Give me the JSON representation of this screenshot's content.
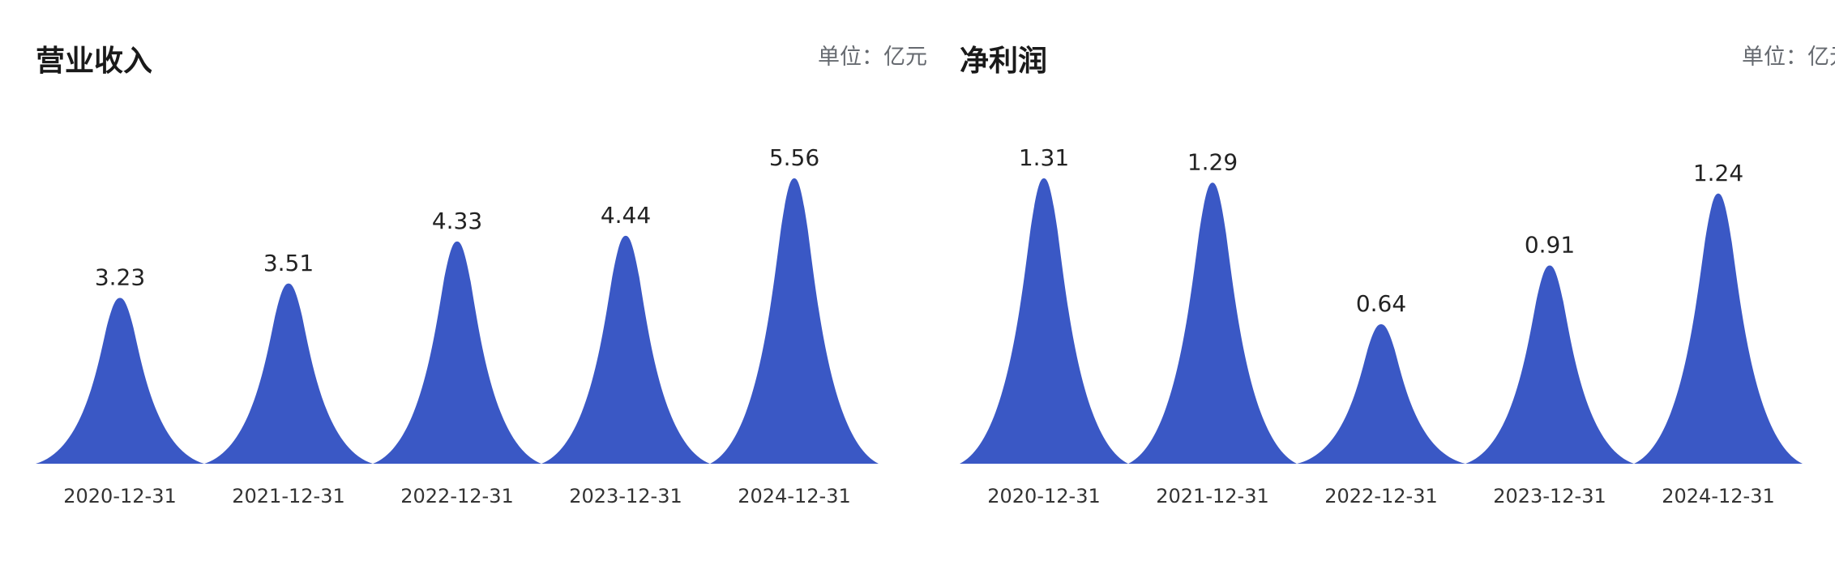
{
  "chart_data": [
    {
      "type": "bar",
      "title": "营业收入",
      "unit": "单位：亿元",
      "categories": [
        "2020-12-31",
        "2021-12-31",
        "2022-12-31",
        "2023-12-31",
        "2024-12-31"
      ],
      "values": [
        3.23,
        3.51,
        4.33,
        4.44,
        5.56
      ],
      "value_labels": [
        "3.23",
        "3.51",
        "4.33",
        "4.44",
        "5.56"
      ],
      "ylim": [
        0,
        5.56
      ],
      "grid": false,
      "bar_shape": "spike",
      "color": "#3a58c5"
    },
    {
      "type": "bar",
      "title": "净利润",
      "unit": "单位：亿元",
      "categories": [
        "2020-12-31",
        "2021-12-31",
        "2022-12-31",
        "2023-12-31",
        "2024-12-31"
      ],
      "values": [
        1.31,
        1.29,
        0.64,
        0.91,
        1.24
      ],
      "value_labels": [
        "1.31",
        "1.29",
        "0.64",
        "0.91",
        "1.24"
      ],
      "ylim": [
        0,
        1.31
      ],
      "grid": false,
      "bar_shape": "spike",
      "color": "#3a58c5"
    }
  ]
}
